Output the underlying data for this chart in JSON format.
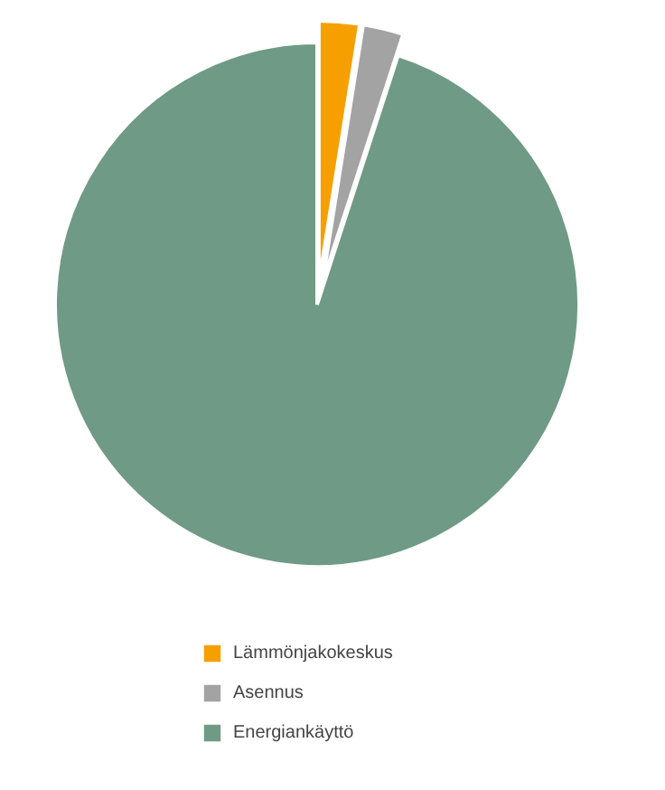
{
  "chart_data": {
    "type": "pie",
    "categories": [
      "Lämmönjakokeskus",
      "Asennus",
      "Energiankäyttö"
    ],
    "values": [
      2.5,
      2.5,
      95
    ],
    "colors": [
      "#f5a000",
      "#a3a3a3",
      "#6f9a86"
    ],
    "legend": "bottom"
  }
}
